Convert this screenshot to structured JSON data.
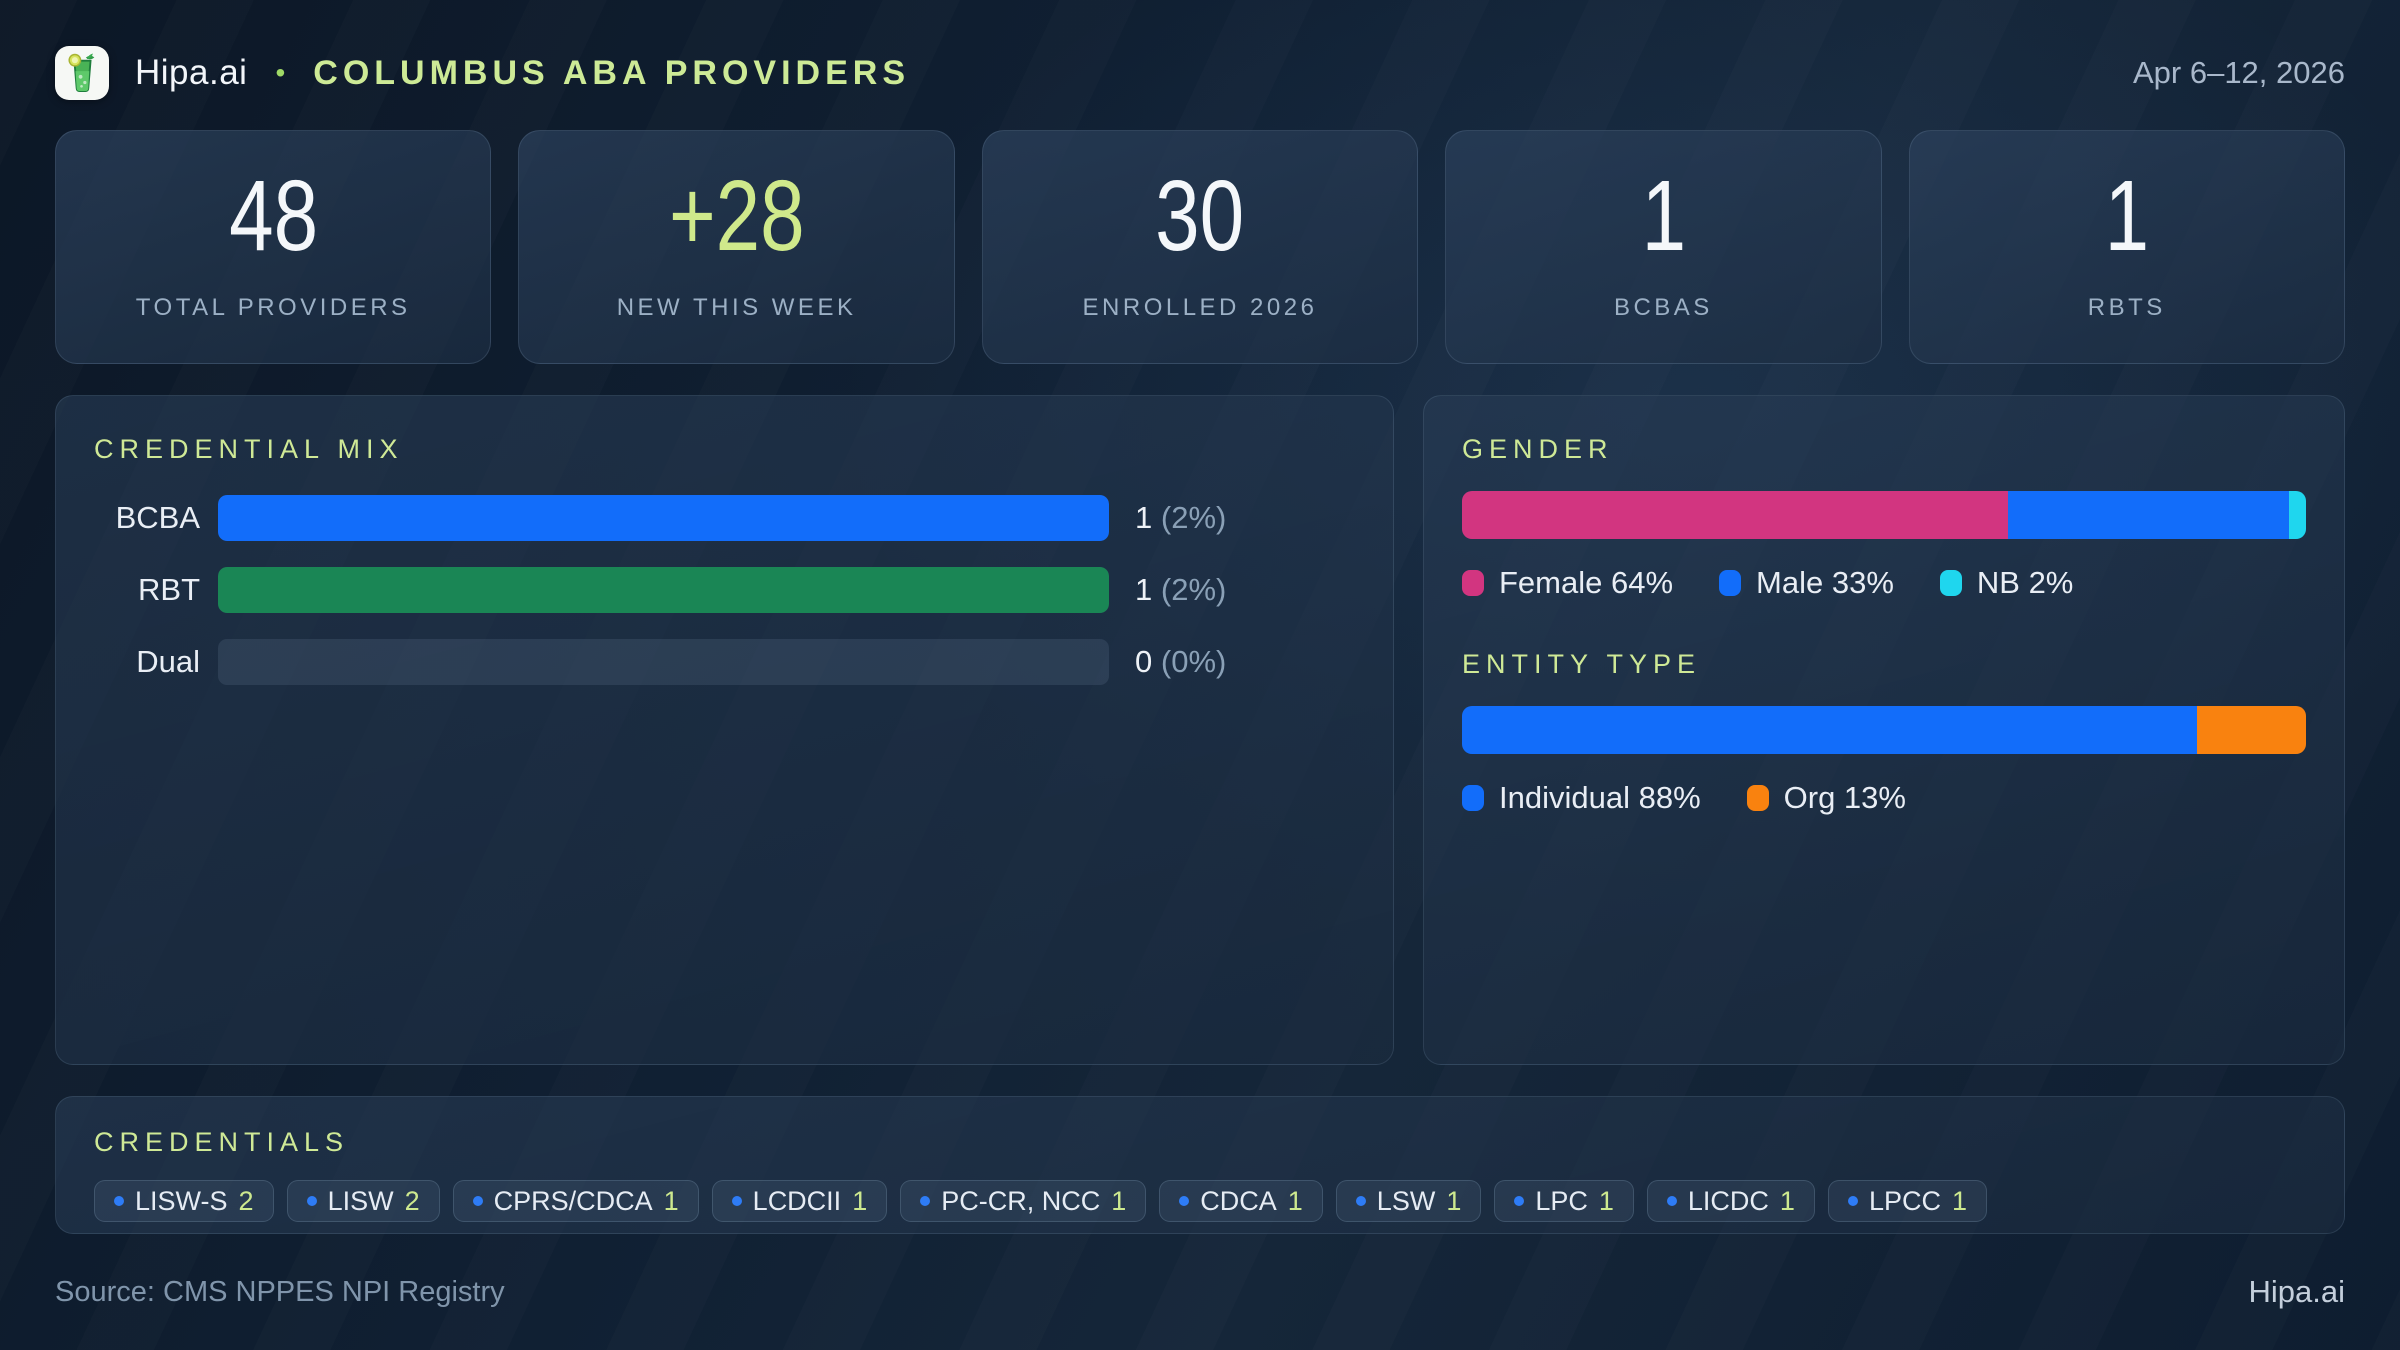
{
  "header": {
    "brand": "Hipa.ai",
    "separator": "•",
    "title": "COLUMBUS ABA PROVIDERS",
    "date_range": "Apr 6–12, 2026",
    "logo_icon": "mojito-glass-icon"
  },
  "stats": [
    {
      "value": "48",
      "label": "TOTAL PROVIDERS"
    },
    {
      "value": "+28",
      "label": "NEW THIS WEEK"
    },
    {
      "value": "30",
      "label": "ENROLLED 2026"
    },
    {
      "value": "1",
      "label": "BCBAS"
    },
    {
      "value": "1",
      "label": "RBTS"
    }
  ],
  "credential_mix": {
    "title": "CREDENTIAL MIX",
    "rows": [
      {
        "label": "BCBA",
        "value": "1",
        "pct_text": "(2%)",
        "fill_pct": 100,
        "color": "#126dfa"
      },
      {
        "label": "RBT",
        "value": "1",
        "pct_text": "(2%)",
        "fill_pct": 100,
        "color": "#1a8655"
      },
      {
        "label": "Dual",
        "value": "0",
        "pct_text": "(0%)",
        "fill_pct": 0,
        "color": "transparent"
      }
    ]
  },
  "gender": {
    "title": "GENDER",
    "segments": [
      {
        "label": "Female",
        "pct": 64,
        "color": "#d23580",
        "legend": "Female 64%"
      },
      {
        "label": "Male",
        "pct": 33,
        "color": "#126dfa",
        "legend": "Male 33%"
      },
      {
        "label": "NB",
        "pct": 2,
        "color": "#1fd6ee",
        "legend": "NB 2%"
      }
    ]
  },
  "entity": {
    "title": "ENTITY TYPE",
    "segments": [
      {
        "label": "Individual",
        "pct": 88,
        "color": "#126dfa",
        "legend": "Individual 88%"
      },
      {
        "label": "Org",
        "pct": 13,
        "color": "#f9820f",
        "legend": "Org 13%"
      }
    ]
  },
  "credentials": {
    "title": "CREDENTIALS",
    "chips": [
      {
        "label": "LISW-S",
        "count": "2"
      },
      {
        "label": "LISW",
        "count": "2"
      },
      {
        "label": "CPRS/CDCA",
        "count": "1"
      },
      {
        "label": "LCDCII",
        "count": "1"
      },
      {
        "label": "PC-CR, NCC",
        "count": "1"
      },
      {
        "label": "CDCA",
        "count": "1"
      },
      {
        "label": "LSW",
        "count": "1"
      },
      {
        "label": "LPC",
        "count": "1"
      },
      {
        "label": "LICDC",
        "count": "1"
      },
      {
        "label": "LPCC",
        "count": "1"
      }
    ]
  },
  "footer": {
    "source": "Source: CMS NPPES NPI Registry",
    "brand": "Hipa.ai"
  },
  "colors": {
    "accent_lime": "#cfe996",
    "blue": "#126dfa",
    "green": "#1a8655",
    "pink": "#d23580",
    "cyan": "#1fd6ee",
    "orange": "#f9820f"
  },
  "chart_data": [
    {
      "type": "bar",
      "orientation": "horizontal",
      "title": "CREDENTIAL MIX",
      "categories": [
        "BCBA",
        "RBT",
        "Dual"
      ],
      "values": [
        1,
        1,
        0
      ],
      "value_labels": [
        "1 (2%)",
        "1 (2%)",
        "0 (0%)"
      ],
      "legend_position": "none",
      "grid": false
    },
    {
      "type": "bar",
      "subtype": "stacked-horizontal-100pct",
      "title": "GENDER",
      "categories": [
        "Female",
        "Male",
        "NB"
      ],
      "values": [
        64,
        33,
        2
      ],
      "unit": "%",
      "legend_position": "bottom",
      "grid": false
    },
    {
      "type": "bar",
      "subtype": "stacked-horizontal-100pct",
      "title": "ENTITY TYPE",
      "categories": [
        "Individual",
        "Org"
      ],
      "values": [
        88,
        13
      ],
      "unit": "%",
      "legend_position": "bottom",
      "grid": false
    }
  ]
}
